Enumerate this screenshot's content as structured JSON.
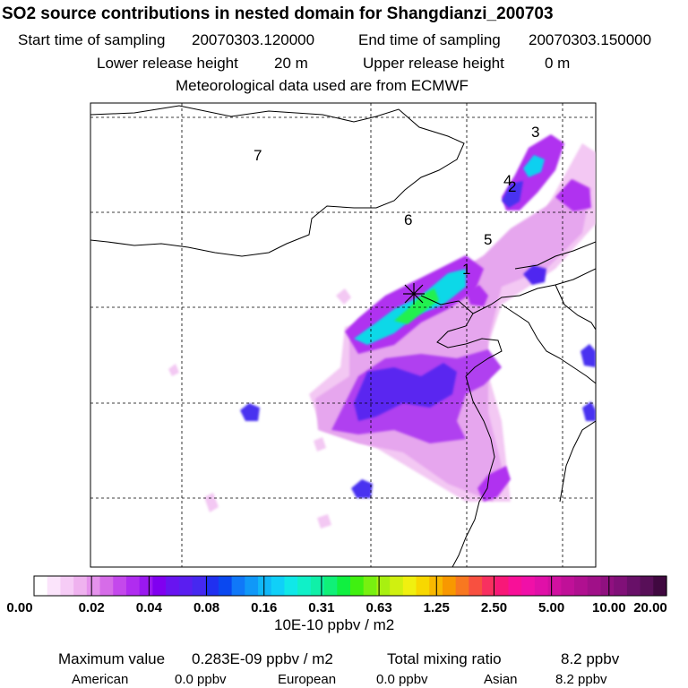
{
  "chart_data": {
    "type": "heatmap",
    "title": "SO2 source contributions in nested domain for Shangdianzi_200703",
    "start_label": "Start time of sampling",
    "start_value": "20070303.120000",
    "end_label": "End time of sampling",
    "end_value": "20070303.150000",
    "lower_label": "Lower release height",
    "lower_value": "20 m",
    "upper_label": "Upper release height",
    "upper_value": "0 m",
    "met_line": "Meteorological data used are from ECMWF",
    "region_labels": [
      "1",
      "2",
      "3",
      "4",
      "5",
      "6",
      "7"
    ],
    "colorbar": {
      "ticks": [
        "0.00",
        "0.02",
        "0.04",
        "0.08",
        "0.16",
        "0.31",
        "0.63",
        "1.25",
        "2.50",
        "5.00",
        "10.00",
        "20.00"
      ],
      "colors": [
        "#ffffff",
        "#fbe4fb",
        "#f6ccf6",
        "#efb2ef",
        "#e592ec",
        "#d66ce8",
        "#c448ec",
        "#b02cf0",
        "#9a18f0",
        "#8000f0",
        "#6814f0",
        "#5a1ef0",
        "#4628f0",
        "#2030f0",
        "#0a48f0",
        "#1078f8",
        "#1098f8",
        "#10b8f8",
        "#10d0f8",
        "#10e8e8",
        "#10f0c8",
        "#10f0a8",
        "#10f078",
        "#10f040",
        "#40f010",
        "#78f010",
        "#a8f010",
        "#d0f010",
        "#f0f010",
        "#f8d800",
        "#f8b800",
        "#f89800",
        "#f87820",
        "#f85040",
        "#f83060",
        "#f81878",
        "#f81098",
        "#f010a8",
        "#e010a8",
        "#d010a0",
        "#c01098",
        "#b01090",
        "#a01088",
        "#901080",
        "#801078",
        "#681068",
        "#580f58",
        "#400840"
      ],
      "unit": "10E-10 ppbv / m2"
    },
    "summary": {
      "max_label": "Maximum value",
      "max_value": "0.283E-09 ppbv / m2",
      "total_label": "Total mixing ratio",
      "total_value": "8.2 ppbv",
      "american_label": "American",
      "american_value": "0.0 ppbv",
      "european_label": "European",
      "european_value": "0.0 ppbv",
      "asian_label": "Asian",
      "asian_value": "8.2 ppbv"
    }
  }
}
